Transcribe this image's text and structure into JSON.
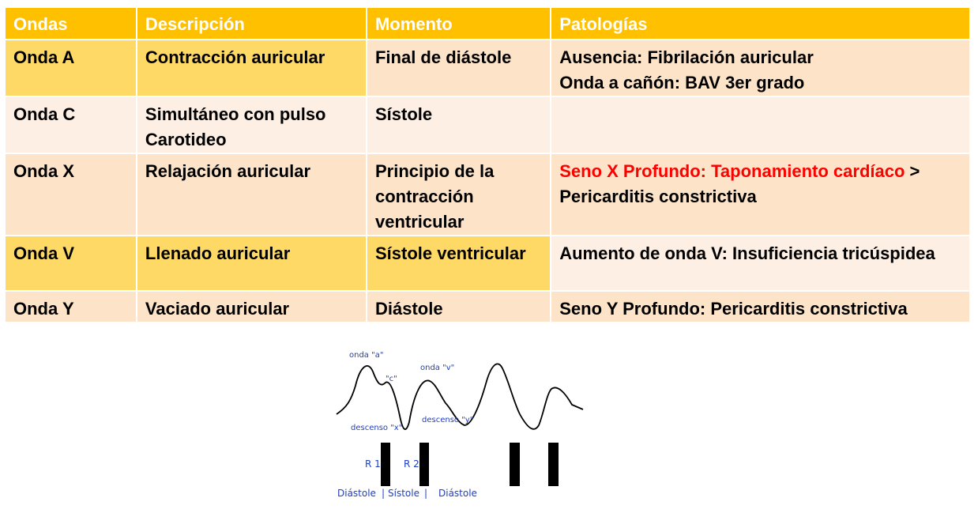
{
  "table": {
    "headers": [
      "Ondas",
      "Descripción",
      "Momento",
      "Patologías"
    ],
    "rows": [
      {
        "onda": "Onda A",
        "descripcion": "Contracción auricular",
        "momento": "Final de diástole",
        "patologia_line1": "Ausencia: Fibrilación auricular",
        "patologia_line2": "Onda a cañón: BAV 3er grado"
      },
      {
        "onda": "Onda C",
        "descripcion": "Simultáneo con pulso Carotideo",
        "momento": "Sístole",
        "patologia": ""
      },
      {
        "onda": "Onda X",
        "descripcion": "Relajación auricular",
        "momento": "Principio de la contracción ventricular",
        "patologia_red": "Seno X Profundo: Taponamiento cardíaco",
        "patologia_rest_symbol": " >",
        "patologia_rest": "Pericarditis constrictiva"
      },
      {
        "onda": "Onda V",
        "descripcion": "Llenado auricular",
        "momento": "Sístole ventricular",
        "patologia": "Aumento de onda V: Insuficiencia tricúspidea"
      },
      {
        "onda": "Onda Y",
        "descripcion": "Vaciado auricular",
        "momento": "Diástole",
        "patologia_red": "Seno Y Profundo: Pericarditis constrictiva"
      }
    ]
  },
  "diagram": {
    "label_a": "onda \"a\"",
    "label_c": "\"c\"",
    "label_v": "onda \"v\"",
    "label_x": "descenso \"x\"",
    "label_y": "descenso \"y\"",
    "label_r1": "R 1",
    "label_r2": "R 2",
    "phase_diastole1": "Diástole",
    "sep1": "|",
    "phase_systole": "Sístole",
    "sep2": "|",
    "phase_diastole2": "Diástole"
  },
  "colors": {
    "header": "#ffc000",
    "highlight": "#ffd966",
    "row_light": "#fde4c9",
    "row_pale": "#fdefe3",
    "red_text": "#ff0000",
    "diagram_labels": "#1f3fbf"
  }
}
